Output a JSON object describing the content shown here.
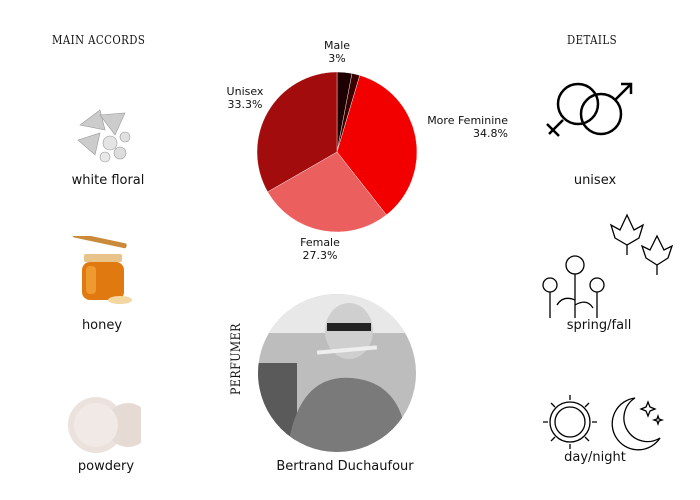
{
  "left": {
    "heading": "MAIN ACCORDS",
    "accords": [
      {
        "label": "white floral",
        "icon": "white-flower-image"
      },
      {
        "label": "honey",
        "icon": "honey-jar-image"
      },
      {
        "label": "powdery",
        "icon": "powder-image"
      }
    ]
  },
  "right": {
    "heading": "DETAILS",
    "details": [
      {
        "label": "unisex",
        "icon": "gender-symbols-icon"
      },
      {
        "label": "spring/fall",
        "icon": "flowers-leaves-icon"
      },
      {
        "label": "day/night",
        "icon": "sun-moon-icon"
      }
    ]
  },
  "perfumer": {
    "heading": "PERFUMER",
    "name": "Bertrand Duchaufour"
  },
  "chart_data": {
    "type": "pie",
    "start": "top",
    "direction": "clockwise",
    "slices": [
      {
        "name": "Male",
        "value": 3,
        "label": "3%",
        "color": "#1e0000"
      },
      {
        "name": "",
        "value": 1.6,
        "label": "",
        "color": "#3a0000"
      },
      {
        "name": "More Feminine",
        "value": 34.8,
        "label": "34.8%",
        "color": "#f20000"
      },
      {
        "name": "Female",
        "value": 27.3,
        "label": "27.3%",
        "color": "#ec5f5f"
      },
      {
        "name": "Unisex",
        "value": 33.3,
        "label": "33.3%",
        "color": "#a30c0c"
      }
    ]
  }
}
